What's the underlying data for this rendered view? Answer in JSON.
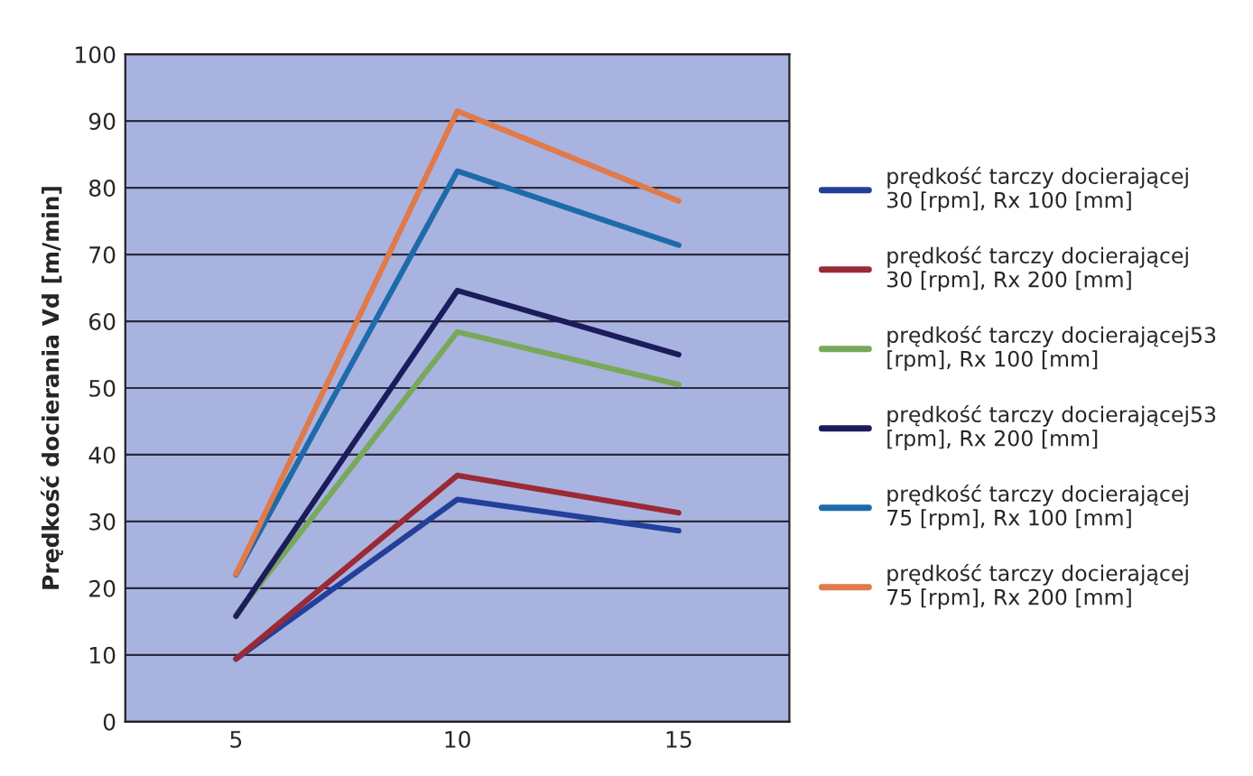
{
  "chart_data": {
    "type": "line",
    "ylabel": "Prędkość docierania Vd [m/min]",
    "x": [
      5,
      10,
      15
    ],
    "xlim": [
      2.5,
      17.5
    ],
    "xticks": [
      5,
      10,
      15
    ],
    "ylim": [
      0,
      100
    ],
    "yticks": [
      0,
      10,
      20,
      30,
      40,
      50,
      60,
      70,
      80,
      90,
      100
    ],
    "grid": "y",
    "legend": "right",
    "marker": "none",
    "line_style": "solid",
    "series": [
      {
        "name": "prędkość tarczy docierającej 30 [rpm], Rx 100 [mm]",
        "color": "#22409a",
        "values": [
          9.4,
          33.3,
          28.6
        ]
      },
      {
        "name": "prędkość tarczy docierającej 30 [rpm], Rx 200 [mm]",
        "color": "#9a2a35",
        "values": [
          9.4,
          36.9,
          31.3
        ]
      },
      {
        "name": "prędkość tarczy docierającej53 [rpm], Rx 100 [mm]",
        "color": "#78a85a",
        "values": [
          16,
          58.4,
          50.5
        ]
      },
      {
        "name": "prędkość tarczy docierającej53 [rpm], Rx 200 [mm]",
        "color": "#1c1c5c",
        "values": [
          15.8,
          64.6,
          55
        ]
      },
      {
        "name": "prędkość tarczy docierającej 75 [rpm], Rx 100 [mm]",
        "color": "#1f6aaa",
        "values": [
          22,
          82.5,
          71.4
        ]
      },
      {
        "name": "prędkość tarczy docierającej 75 [rpm], Rx 200 [mm]",
        "color": "#e07a4a",
        "values": [
          22.1,
          91.5,
          78
        ]
      }
    ]
  }
}
